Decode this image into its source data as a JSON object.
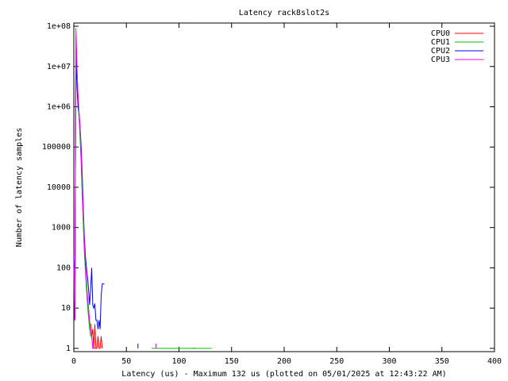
{
  "chart_data": {
    "type": "line",
    "title": "Latency rack8slot2s",
    "x_label": "Latency (us) - Maximum 132 us (plotted on 05/01/2025 at 12:43:22 AM)",
    "y_label": "Number of latency samples",
    "log_y": true,
    "grid": false,
    "legend": "top-right",
    "xlim": [
      0,
      400
    ],
    "xticks": [
      0,
      50,
      100,
      150,
      200,
      250,
      300,
      350,
      400
    ],
    "ylim": [
      0.83,
      120000000
    ],
    "yticks": [
      {
        "value": 100000000,
        "label": "1e+08"
      },
      {
        "value": 10000000,
        "label": "1e+07"
      },
      {
        "value": 1000000,
        "label": "1e+06"
      },
      100000,
      10000,
      1000,
      100,
      10,
      1
    ],
    "series": [
      {
        "name": "CPU0",
        "color": "#ff0000",
        "x": [
          0,
          1,
          2,
          3,
          4,
          5,
          6,
          7,
          8,
          9,
          10,
          11,
          12,
          13,
          14,
          15,
          16,
          17,
          18,
          19,
          20,
          21,
          22,
          23,
          24,
          25,
          26,
          27,
          28,
          113,
          116
        ],
        "values": [
          200,
          5,
          60000000,
          8000000,
          1500000,
          600000,
          200000,
          50000,
          8000,
          1500,
          300,
          100,
          40,
          15,
          8,
          4,
          4,
          2,
          3,
          1,
          4,
          1,
          1,
          2,
          1,
          1,
          2,
          1,
          null,
          1,
          1
        ]
      },
      {
        "name": "CPU1",
        "color": "#00c000",
        "x": [
          0,
          1,
          2,
          3,
          4,
          5,
          6,
          7,
          8,
          9,
          10,
          11,
          12,
          13,
          14,
          15,
          16,
          17,
          18,
          19,
          20,
          21,
          22,
          74,
          131
        ],
        "values": [
          150,
          5,
          50000000,
          7000000,
          1200000,
          500000,
          150000,
          40000,
          6000,
          1200,
          250,
          80,
          30,
          12,
          6,
          3,
          2,
          2,
          1,
          1,
          1,
          1,
          null,
          1,
          1
        ]
      },
      {
        "name": "CPU2",
        "color": "#0000ff",
        "x": [
          0,
          1,
          2,
          3,
          4,
          5,
          6,
          7,
          8,
          9,
          10,
          11,
          12,
          13,
          14,
          15,
          16,
          17,
          18,
          19,
          20,
          21,
          22,
          23,
          24,
          25,
          26,
          27,
          28,
          29,
          30,
          61
        ],
        "values": [
          200,
          5,
          20000000,
          3000000,
          1000000,
          700000,
          300000,
          100000,
          20000,
          3000,
          600,
          200,
          100,
          60,
          30,
          12,
          30,
          100,
          12,
          10,
          13,
          5,
          5,
          3,
          5,
          3,
          20,
          40,
          40,
          40,
          null,
          1
        ]
      },
      {
        "name": "CPU3",
        "color": "#ff00ff",
        "x": [
          0,
          1,
          2,
          3,
          4,
          5,
          6,
          7,
          8,
          9,
          10,
          11,
          12,
          13,
          14,
          15,
          16,
          17,
          18,
          19,
          20,
          21,
          22,
          78
        ],
        "values": [
          100,
          5,
          90000000,
          9000000,
          2000000,
          700000,
          250000,
          60000,
          10000,
          2000,
          400,
          120,
          50,
          20,
          10,
          5,
          3,
          2,
          1,
          1,
          1,
          1,
          null,
          1
        ]
      }
    ]
  }
}
